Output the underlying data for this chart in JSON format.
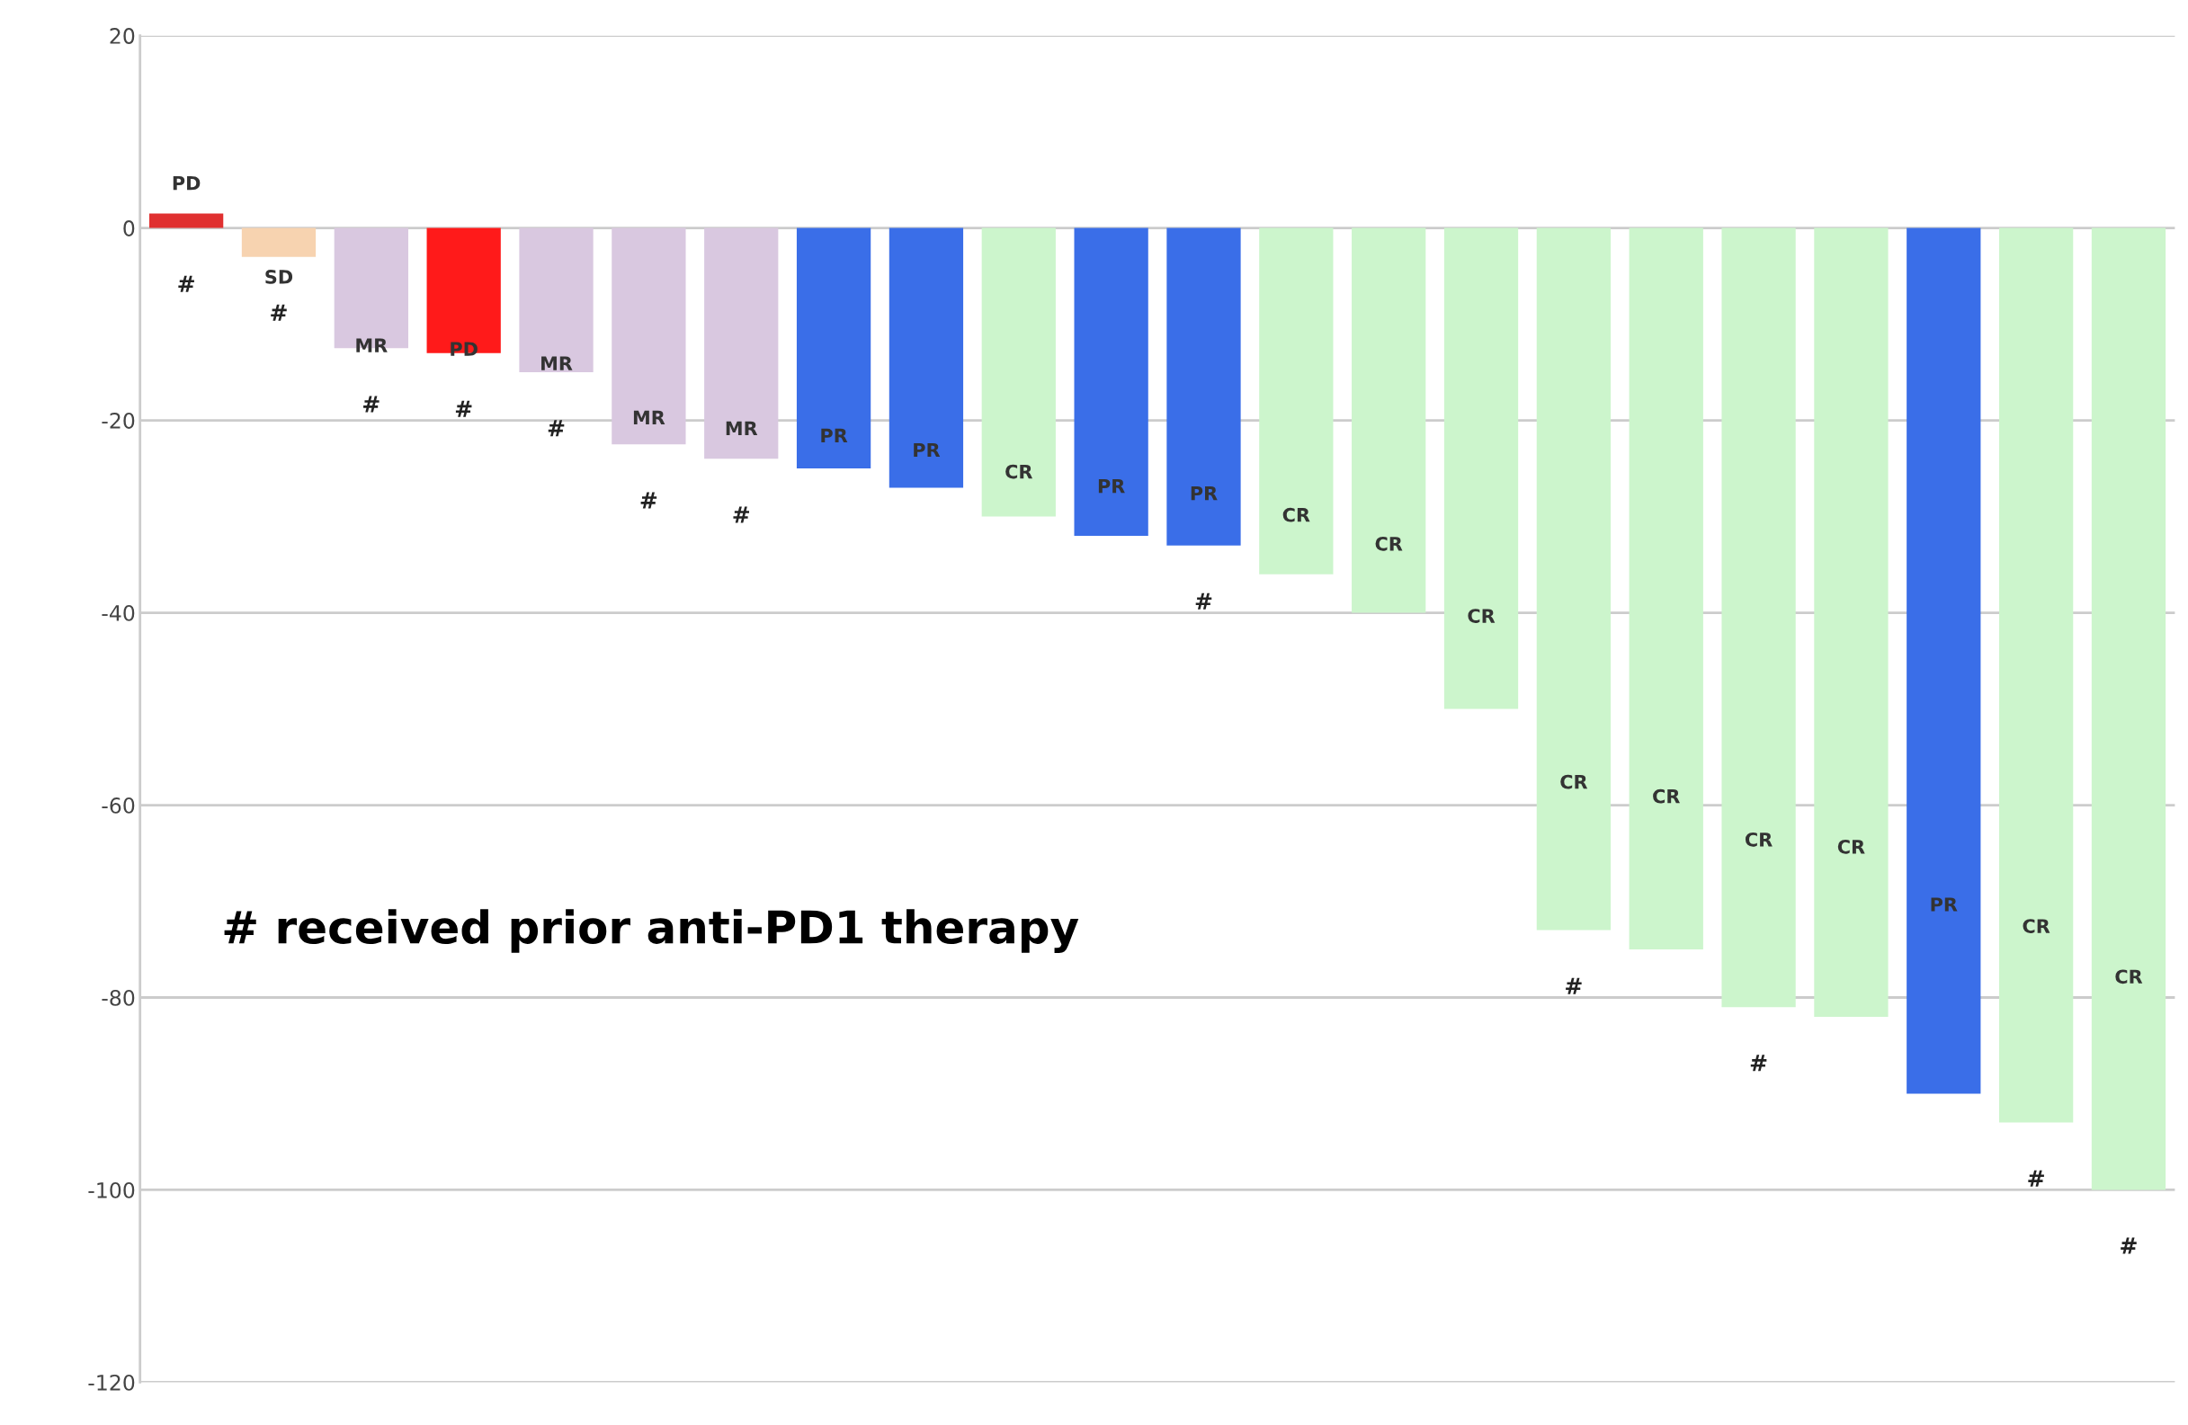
{
  "chart_data": {
    "type": "bar",
    "categories": [
      null,
      null,
      null,
      null,
      null,
      null,
      null,
      null,
      null,
      null,
      null,
      null,
      null,
      null,
      null,
      null,
      null,
      null,
      null,
      null,
      null,
      null
    ],
    "values": [
      1.5,
      -3,
      -12.5,
      -13,
      -15,
      -22.5,
      -24,
      -25,
      -27,
      -30,
      -32,
      -33,
      -36,
      -40,
      -50,
      -73,
      -75,
      -81,
      -82,
      -90,
      -93,
      -100
    ],
    "colors": [
      "#e03030",
      "#f7d3b0",
      "#d9c8e0",
      "#ff1a1a",
      "#d9c8e0",
      "#d9c8e0",
      "#d9c8e0",
      "#3a6ee8",
      "#3a6ee8",
      "#ccf5cc",
      "#3a6ee8",
      "#3a6ee8",
      "#ccf5cc",
      "#ccf5cc",
      "#ccf5cc",
      "#ccf5cc",
      "#ccf5cc",
      "#ccf5cc",
      "#ccf5cc",
      "#3a6ee8",
      "#ccf5cc",
      "#ccf5cc"
    ],
    "value_labels": [
      "PD\n#",
      "SD\n#",
      "MR\n#",
      "PD\n#",
      "MR\n#",
      "MR\n#",
      "MR\n#",
      "PR",
      "PR",
      "CR",
      "PR",
      "PR\n#",
      "CR",
      "CR",
      "CR",
      "CR\n#",
      "CR",
      "CR\n#",
      "CR",
      "PR",
      "CR\n#",
      "CR\n#"
    ],
    "ylim": [
      -120,
      20
    ],
    "yticks": [
      20,
      0,
      -20,
      -40,
      -60,
      -80,
      -100,
      -120
    ],
    "grid": "y",
    "annotations": [
      "# received prior anti-PD1 therapy"
    ]
  }
}
